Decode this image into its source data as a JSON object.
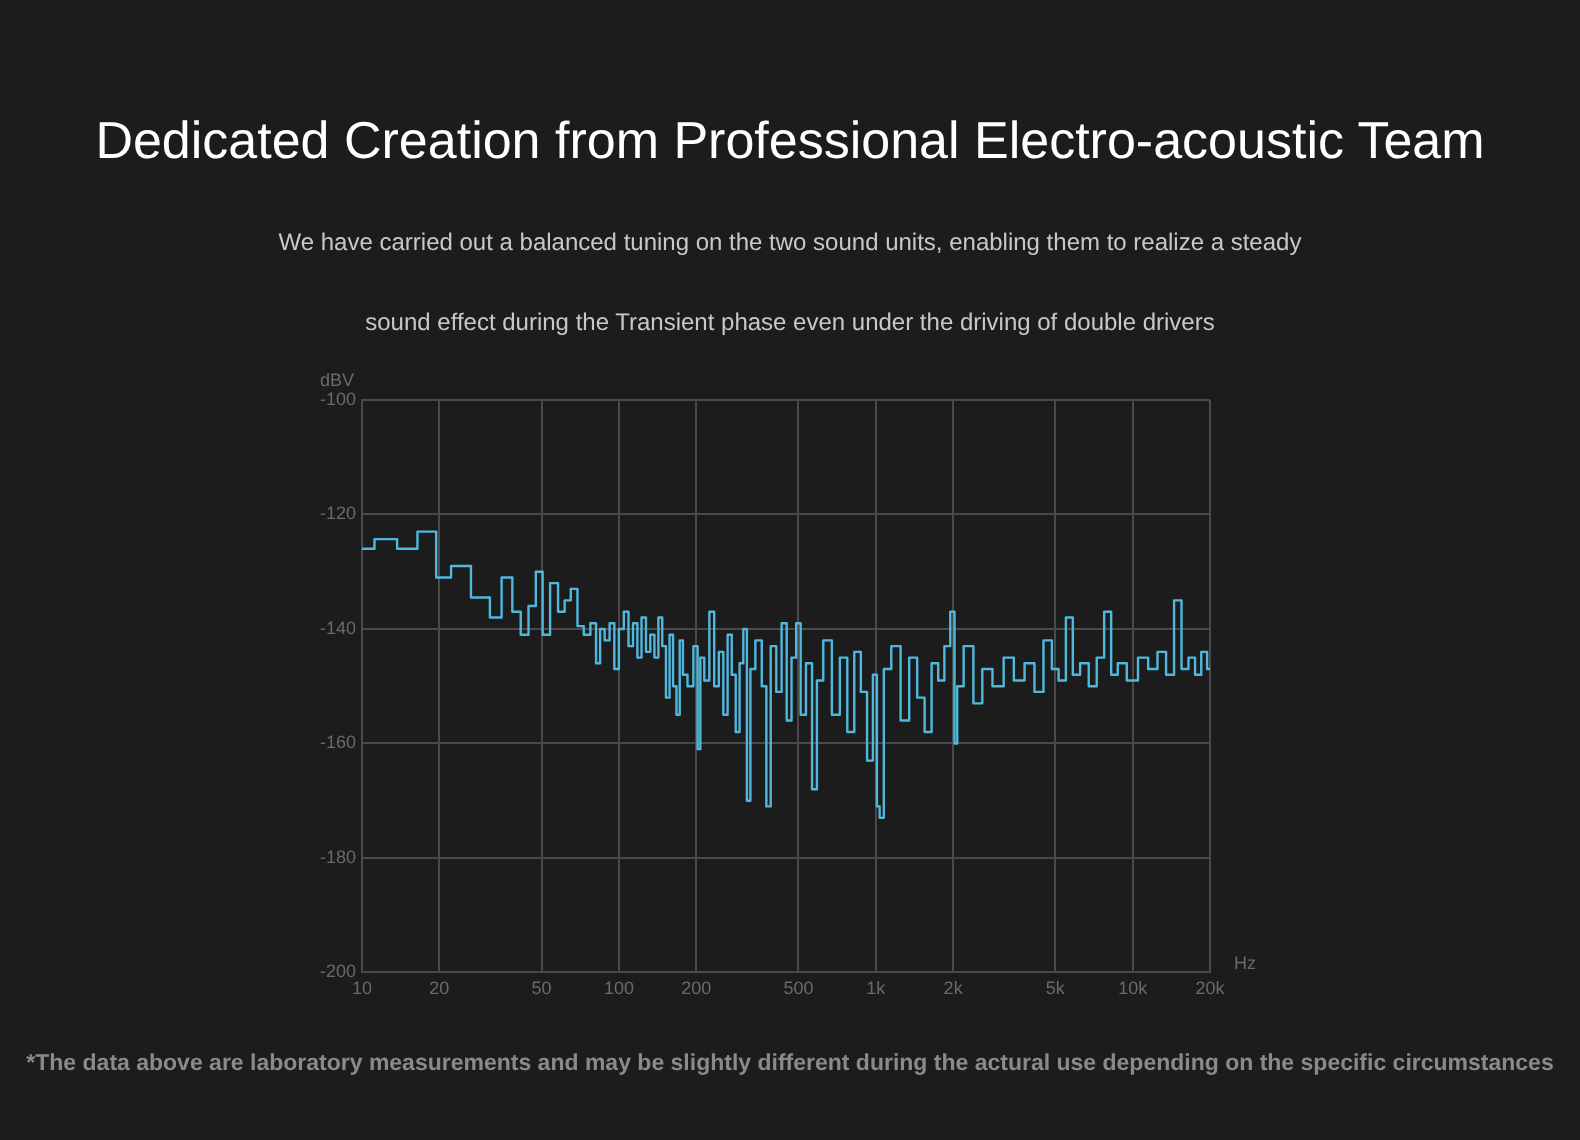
{
  "chart_data": {
    "type": "step",
    "title": "Dedicated Creation from Professional Electro-acoustic Team",
    "subtitle": "We have carried out a balanced tuning on the two sound units, enabling them to realize a steady sound effect during the Transient phase even under the driving of double drivers",
    "xlabel": "Hz",
    "ylabel": "dBV",
    "log": "x",
    "grid": true,
    "legend": false,
    "marker": "none",
    "xlim": [
      10,
      20000
    ],
    "xticks": [
      10,
      20,
      50,
      100,
      200,
      500,
      {
        "value": 1000,
        "label": "1k"
      },
      {
        "value": 2000,
        "label": "2k"
      },
      {
        "value": 5000,
        "label": "5k"
      },
      {
        "value": 10000,
        "label": "10k"
      },
      {
        "value": 20000,
        "label": "20k"
      }
    ],
    "ylim": [
      -200,
      -100
    ],
    "yticks": [
      -200,
      -180,
      -160,
      -140,
      -120,
      -100
    ],
    "annotations": [
      "*The data above are laboratory measurements and may be slightly different during the actural use depending on the specific circumstances"
    ],
    "series": [
      {
        "color": "#4fb8dc",
        "x": [
          10,
          12.5,
          15,
          18,
          21,
          23.5,
          30,
          33,
          37,
          40,
          43,
          46,
          49,
          52,
          56,
          60,
          63,
          67,
          71,
          75,
          80,
          83,
          86,
          90,
          94,
          98,
          102,
          107,
          111,
          116,
          120,
          125,
          130,
          135,
          140,
          145,
          150,
          155,
          160,
          165,
          170,
          175,
          180,
          190,
          200,
          205,
          210,
          220,
          230,
          240,
          250,
          260,
          270,
          280,
          290,
          300,
          310,
          320,
          330,
          350,
          370,
          380,
          400,
          420,
          440,
          460,
          480,
          500,
          520,
          550,
          580,
          600,
          650,
          700,
          750,
          800,
          850,
          900,
          950,
          1000,
          1020,
          1050,
          1100,
          1200,
          1300,
          1400,
          1500,
          1600,
          1700,
          1800,
          1900,
          2000,
          2050,
          2100,
          2300,
          2500,
          2700,
          3000,
          3300,
          3600,
          4000,
          4300,
          4700,
          5000,
          5300,
          5700,
          6000,
          6500,
          7000,
          7500,
          8000,
          8500,
          9000,
          10000,
          11000,
          12000,
          13000,
          14000,
          15000,
          16000,
          17000,
          18000,
          19000,
          20000
        ],
        "values": [
          -126,
          -124.3,
          -126,
          -123,
          -131,
          -129,
          -134.5,
          -138,
          -131,
          -137,
          -141,
          -136,
          -130,
          -141,
          -132,
          -137,
          -135,
          -133,
          -139.5,
          -141,
          -139,
          -146,
          -140,
          -142,
          -139,
          -147,
          -140,
          -137,
          -143,
          -139,
          -145,
          -138,
          -144,
          -141,
          -145,
          -138,
          -143,
          -152,
          -141,
          -150,
          -155,
          -142,
          -148,
          -150,
          -143,
          -161,
          -145,
          -149,
          -137,
          -150,
          -144,
          -155,
          -141,
          -148,
          -158,
          -146,
          -140,
          -170,
          -147,
          -142,
          -150,
          -171,
          -143,
          -151,
          -139,
          -156,
          -145,
          -139,
          -155,
          -146,
          -168,
          -149,
          -142,
          -155,
          -145,
          -158,
          -144,
          -151,
          -163,
          -148,
          -171,
          -173,
          -147,
          -143,
          -156,
          -145,
          -152,
          -158,
          -146,
          -149,
          -143,
          -137,
          -160,
          -150,
          -143,
          -153,
          -147,
          -150,
          -145,
          -149,
          -146,
          -151,
          -142,
          -147,
          -149,
          -138,
          -148,
          -146,
          -150,
          -145,
          -137,
          -148,
          -146,
          -149,
          -145,
          -147,
          -144,
          -148,
          -135,
          -147,
          -145,
          -148,
          -144,
          -147
        ]
      }
    ]
  }
}
